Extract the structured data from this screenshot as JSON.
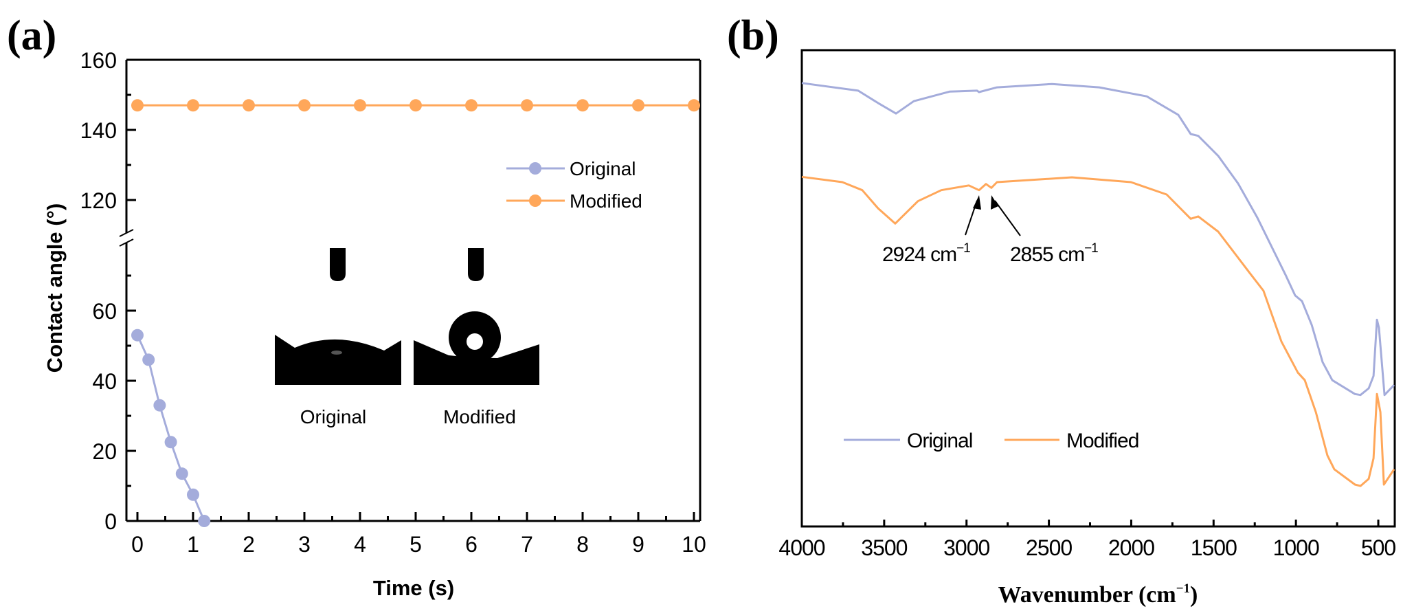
{
  "chart_data": [
    {
      "panel_label": "(a)",
      "type": "line",
      "xlabel": "Time (s)",
      "ylabel": "Contact angle (°)",
      "xlim": [
        -0.25,
        10.2
      ],
      "y_axis_break": true,
      "ylim_lower": [
        0,
        80
      ],
      "ylim_upper": [
        110,
        160
      ],
      "xticks": [
        "0",
        "1",
        "2",
        "3",
        "4",
        "5",
        "6",
        "7",
        "8",
        "9",
        "10"
      ],
      "yticks": [
        "0",
        "20",
        "40",
        "60",
        "120",
        "140",
        "160"
      ],
      "legend_position": "right",
      "series": [
        {
          "name": "Original",
          "color": "#a4acdb",
          "x": [
            0,
            0.2,
            0.4,
            0.6,
            0.8,
            1.0,
            1.2
          ],
          "y": [
            53,
            46,
            33,
            22.5,
            13.5,
            7.5,
            0
          ]
        },
        {
          "name": "Modified",
          "color": "#ffa75a",
          "x": [
            0,
            1,
            2,
            3,
            4,
            5,
            6,
            7,
            8,
            9,
            10
          ],
          "y": [
            147,
            147,
            147,
            147,
            147,
            147,
            147,
            147,
            147,
            147,
            147
          ]
        }
      ],
      "inset": {
        "labels": [
          "Original",
          "Modified"
        ]
      }
    },
    {
      "panel_label": "(b)",
      "type": "line",
      "xlabel": "Wavenumber (cm",
      "xlabel_sup": "−1",
      "xlabel_close": ")",
      "ylabel": "",
      "xlim": [
        4000,
        400
      ],
      "ylim": [
        0,
        100
      ],
      "y_units": "arbitrary (no y-axis shown)",
      "xticks": [
        "4000",
        "3500",
        "3000",
        "2500",
        "2000",
        "1500",
        "1000",
        "500"
      ],
      "legend_position": "bottom-left",
      "annotations": [
        {
          "text": "2924 cm",
          "sup": "−1",
          "x": 2924
        },
        {
          "text": "2855 cm",
          "sup": "−1",
          "x": 2855
        }
      ],
      "series": [
        {
          "name": "Original",
          "color": "#a4acdb",
          "x": [
            4000,
            3658,
            3537,
            3428,
            3320,
            3103,
            2936,
            2924,
            2815,
            2481,
            2194,
            1906,
            1714,
            1639,
            1593,
            1472,
            1351,
            1234,
            1063,
            1005,
            963,
            904,
            838,
            779,
            642,
            608,
            558,
            529,
            508,
            496,
            462,
            404
          ],
          "y": [
            93.1,
            91.5,
            88.9,
            86.7,
            89.3,
            91.3,
            91.5,
            91.2,
            92.2,
            92.9,
            92.2,
            90.3,
            86.4,
            82.4,
            82.0,
            77.8,
            72.0,
            64.8,
            52.8,
            48.5,
            47.3,
            42.3,
            34.5,
            30.7,
            27.8,
            27.6,
            29.0,
            31.6,
            43.4,
            41.7,
            27.6,
            29.7
          ]
        },
        {
          "name": "Modified",
          "color": "#ffa75a",
          "x": [
            4000,
            3754,
            3633,
            3537,
            3433,
            3295,
            3153,
            2986,
            2924,
            2882,
            2849,
            2815,
            2360,
            2002,
            1785,
            1639,
            1593,
            1472,
            1280,
            1197,
            1088,
            988,
            946,
            879,
            809,
            767,
            642,
            608,
            558,
            529,
            508,
            487,
            466,
            404
          ],
          "y": [
            73.4,
            72.3,
            70.6,
            66.8,
            63.6,
            68.3,
            70.6,
            71.6,
            70.6,
            71.9,
            71.1,
            72.3,
            73.3,
            72.3,
            69.7,
            64.6,
            65.1,
            61.9,
            53.2,
            49.5,
            38.8,
            32.3,
            30.7,
            24.0,
            14.9,
            12.0,
            8.8,
            8.5,
            10.0,
            14.3,
            27.8,
            24.0,
            8.8,
            12.0
          ]
        }
      ]
    }
  ]
}
